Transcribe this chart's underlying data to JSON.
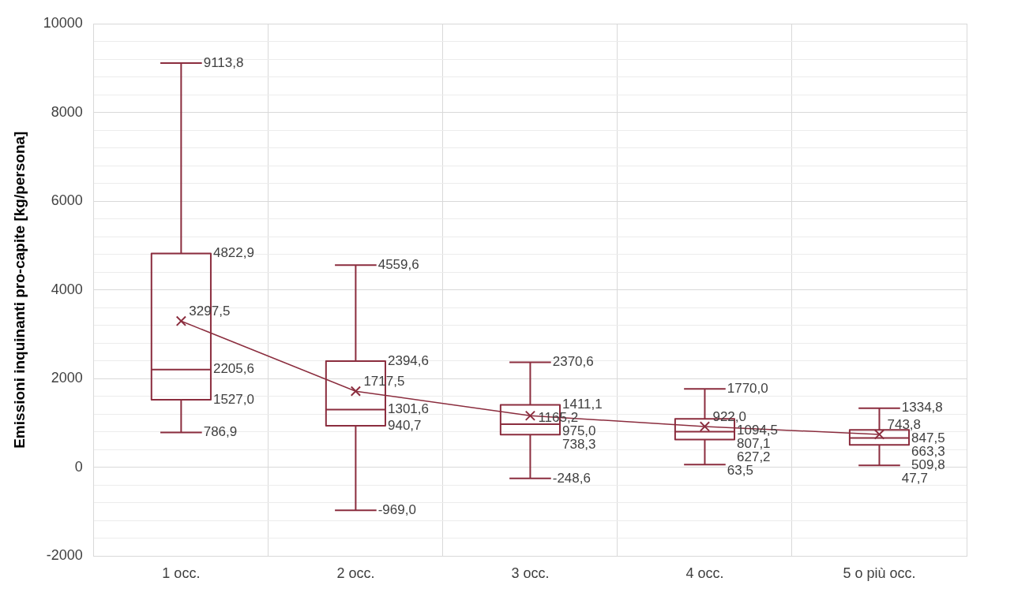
{
  "chart_data": {
    "type": "box",
    "ylabel": "Emissioni inquinanti pro-capite [kg/persona]",
    "categories": [
      "1 occ.",
      "2 occ.",
      "3 occ.",
      "4 occ.",
      "5 o più occ."
    ],
    "color": "#8b2d3e",
    "boxes": [
      {
        "low": 786.9,
        "q1": 1527.0,
        "median": 2205.6,
        "q3": 4822.9,
        "high": 9113.8
      },
      {
        "low": -969.0,
        "q1": 940.7,
        "median": 1301.6,
        "q3": 2394.6,
        "high": 4559.6
      },
      {
        "low": -248.6,
        "q1": 738.3,
        "median": 975.0,
        "q3": 1411.1,
        "high": 2370.6
      },
      {
        "low": 63.5,
        "q1": 627.2,
        "median": 807.1,
        "q3": 1094.5,
        "high": 1770.0
      },
      {
        "low": 47.7,
        "q1": 509.8,
        "median": 663.3,
        "q3": 847.5,
        "high": 1334.8
      }
    ],
    "series": [
      {
        "type": "line",
        "color": "#8b2d3e",
        "x": [
          "1 occ.",
          "2 occ.",
          "3 occ.",
          "4 occ.",
          "5 o più occ."
        ],
        "values": [
          3297.5,
          1717.5,
          1165.2,
          922.0,
          743.8
        ],
        "value_labels": [
          "3297,5",
          "1717,5",
          "1165,2",
          "922,0",
          "743,8"
        ]
      }
    ],
    "annotations": [
      {
        "text": "9113,8",
        "x": "1 occ.",
        "y": 9113.8
      },
      {
        "text": "4822,9",
        "x": "1 occ.",
        "y": 4822.9
      },
      {
        "text": "2205,6",
        "x": "1 occ.",
        "y": 2205.6
      },
      {
        "text": "1527,0",
        "x": "1 occ.",
        "y": 1527.0
      },
      {
        "text": "786,9",
        "x": "1 occ.",
        "y": 786.9
      },
      {
        "text": "4559,6",
        "x": "2 occ.",
        "y": 4559.6
      },
      {
        "text": "2394,6",
        "x": "2 occ.",
        "y": 2394.6
      },
      {
        "text": "1301,6",
        "x": "2 occ.",
        "y": 1301.6
      },
      {
        "text": "940,7",
        "x": "2 occ.",
        "y": 940.7
      },
      {
        "text": "-969,0",
        "x": "2 occ.",
        "y": -969.0
      },
      {
        "text": "2370,6",
        "x": "3 occ.",
        "y": 2370.6
      },
      {
        "text": "1411,1",
        "x": "3 occ.",
        "y": 1411.1
      },
      {
        "text": "975,0",
        "x": "3 occ.",
        "y": 975.0
      },
      {
        "text": "738,3",
        "x": "3 occ.",
        "y": 738.3
      },
      {
        "text": "-248,6",
        "x": "3 occ.",
        "y": -248.6
      },
      {
        "text": "1770,0",
        "x": "4 occ.",
        "y": 1770.0
      },
      {
        "text": "1094,5",
        "x": "4 occ.",
        "y": 1094.5
      },
      {
        "text": "807,1",
        "x": "4 occ.",
        "y": 807.1
      },
      {
        "text": "627,2",
        "x": "4 occ.",
        "y": 627.2
      },
      {
        "text": "63,5",
        "x": "4 occ.",
        "y": 63.5
      },
      {
        "text": "1334,8",
        "x": "5 o più occ.",
        "y": 1334.8
      },
      {
        "text": "847,5",
        "x": "5 o più occ.",
        "y": 847.5
      },
      {
        "text": "663,3",
        "x": "5 o più occ.",
        "y": 663.3
      },
      {
        "text": "509,8",
        "x": "5 o più occ.",
        "y": 509.8
      },
      {
        "text": "47,7",
        "x": "5 o più occ.",
        "y": 47.7
      }
    ],
    "ylim": [
      -2000,
      10000
    ],
    "yticks": [
      -2000,
      {
        "value": -1600,
        "label": null
      },
      {
        "value": -1200,
        "label": null
      },
      {
        "value": -800,
        "label": null
      },
      {
        "value": -400,
        "label": null
      },
      0,
      {
        "value": 400,
        "label": null
      },
      {
        "value": 800,
        "label": null
      },
      {
        "value": 1200,
        "label": null
      },
      {
        "value": 1600,
        "label": null
      },
      2000,
      {
        "value": 2400,
        "label": null
      },
      {
        "value": 2800,
        "label": null
      },
      {
        "value": 3200,
        "label": null
      },
      {
        "value": 3600,
        "label": null
      },
      4000,
      {
        "value": 4400,
        "label": null
      },
      {
        "value": 4800,
        "label": null
      },
      {
        "value": 5200,
        "label": null
      },
      {
        "value": 5600,
        "label": null
      },
      6000,
      {
        "value": 6400,
        "label": null
      },
      {
        "value": 6800,
        "label": null
      },
      {
        "value": 7200,
        "label": null
      },
      {
        "value": 7600,
        "label": null
      },
      8000,
      {
        "value": 8400,
        "label": null
      },
      {
        "value": 8800,
        "label": null
      },
      {
        "value": 9200,
        "label": null
      },
      {
        "value": 9600,
        "label": null
      },
      10000
    ],
    "grid": true,
    "legend": false,
    "marker": "cross"
  }
}
